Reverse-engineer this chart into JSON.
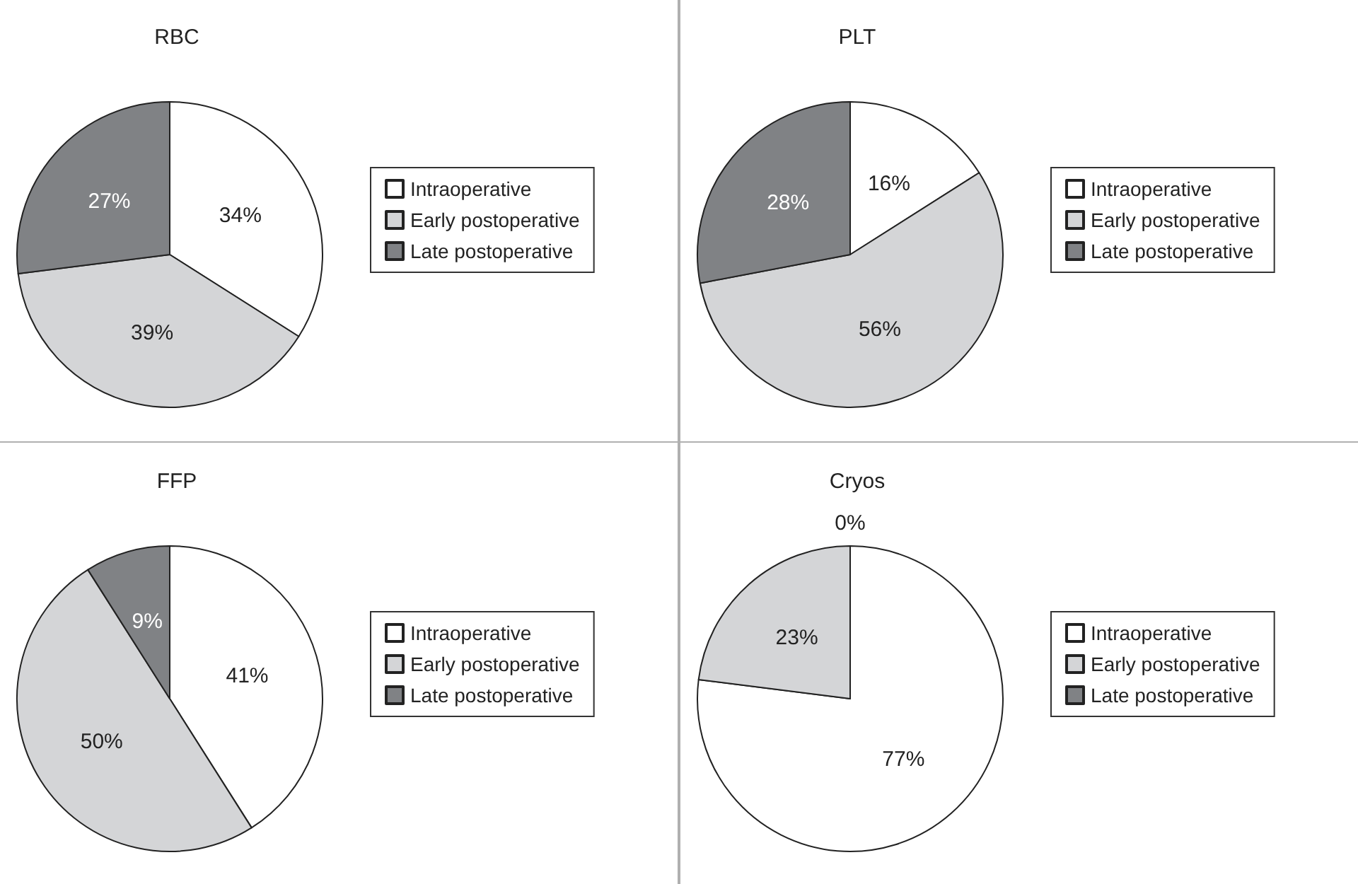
{
  "chart_data": [
    {
      "type": "pie",
      "title": "RBC",
      "categories": [
        "Intraoperative",
        "Early postoperative",
        "Late postoperative"
      ],
      "values": [
        34,
        39,
        27
      ],
      "colors": [
        "#ffffff",
        "#d4d5d7",
        "#808285"
      ],
      "value_labels": [
        "34%",
        "39%",
        "27%"
      ],
      "legend": "right"
    },
    {
      "type": "pie",
      "title": "PLT",
      "categories": [
        "Intraoperative",
        "Early postoperative",
        "Late postoperative"
      ],
      "values": [
        16,
        56,
        28
      ],
      "colors": [
        "#ffffff",
        "#d4d5d7",
        "#808285"
      ],
      "value_labels": [
        "16%",
        "56%",
        "28%"
      ],
      "legend": "right"
    },
    {
      "type": "pie",
      "title": "FFP",
      "categories": [
        "Intraoperative",
        "Early postoperative",
        "Late postoperative"
      ],
      "values": [
        41,
        50,
        9
      ],
      "colors": [
        "#ffffff",
        "#d4d5d7",
        "#808285"
      ],
      "value_labels": [
        "41%",
        "50%",
        "9%"
      ],
      "legend": "right"
    },
    {
      "type": "pie",
      "title": "Cryos",
      "categories": [
        "Intraoperative",
        "Early postoperative",
        "Late postoperative"
      ],
      "values": [
        77,
        23,
        0
      ],
      "colors": [
        "#ffffff",
        "#d4d5d7",
        "#808285"
      ],
      "value_labels": [
        "77%",
        "23%",
        "0%"
      ],
      "legend": "right"
    }
  ]
}
